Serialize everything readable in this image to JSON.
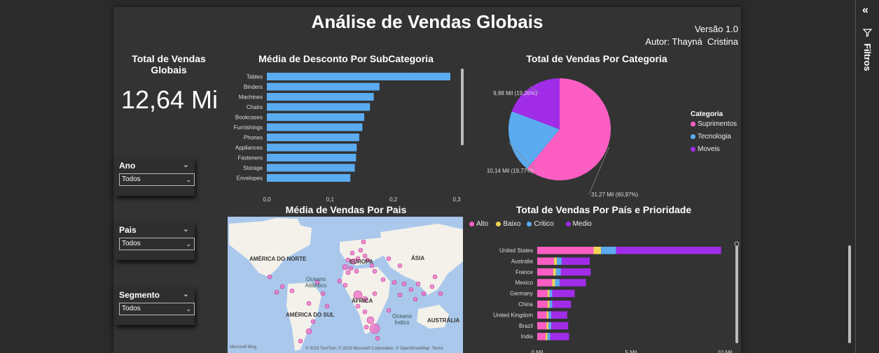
{
  "report": {
    "title": "Análise de Vendas Globais",
    "version": "Versão 1.0",
    "author": "Autor: Thayná  Cristina"
  },
  "kpi": {
    "label": "Total de Vendas Globais",
    "value": "12,64 Mi"
  },
  "slicers": [
    {
      "label": "Ano",
      "value": "Todos"
    },
    {
      "label": "Pais",
      "value": "Todos"
    },
    {
      "label": "Segmento",
      "value": "Todos"
    }
  ],
  "filters_pane": {
    "label": "Filtros"
  },
  "map": {
    "title": "Média de Vendas Por Pais",
    "labels": [
      "AMÉRICA DO NORTE",
      "EUROPA",
      "ÁSIA",
      "Oceano Atlântico",
      "ÁFRICA",
      "AMÉRICA DO SUL",
      "Oceano Índico",
      "AUSTRÁLIA"
    ],
    "brand": "Microsoft Bing",
    "attribution": "© 2023 TomTom, © 2023 Microsoft Corporation, © OpenStreetMap  Terms",
    "colors": {
      "water": "#a9c8ec",
      "land": "#f3f1ea",
      "bubble": "#f06ec4"
    }
  },
  "chart_data": [
    {
      "type": "bar",
      "orientation": "horizontal",
      "title": "Média de Desconto Por SubCategoria",
      "categories": [
        "Tables",
        "Binders",
        "Machines",
        "Chairs",
        "Bookcases",
        "Furnishings",
        "Phones",
        "Appliances",
        "Fasteners",
        "Storage",
        "Envelopes"
      ],
      "values": [
        0.29,
        0.178,
        0.169,
        0.163,
        0.154,
        0.151,
        0.146,
        0.142,
        0.141,
        0.139,
        0.132
      ],
      "xlim": [
        0,
        0.3
      ],
      "xticks": [
        "0,0",
        "0,1",
        "0,2",
        "0,3"
      ],
      "color": "#5aabf0"
    },
    {
      "type": "pie",
      "title": "Total de Vendas Por Categoria",
      "legend_title": "Categoria",
      "categories": [
        "Suprimentos",
        "Tecnologia",
        "Moveis"
      ],
      "values": [
        31.27,
        10.14,
        9.88
      ],
      "percent": [
        60.97,
        19.77,
        19.26
      ],
      "data_labels": [
        "31,27 Mil (60,97%)",
        "10,14 Mil (19,77%)",
        "9,88 Mil (19,26%)"
      ],
      "colors": [
        "#fc5ec3",
        "#5aabf0",
        "#a12ce8"
      ],
      "legend_position": "right"
    },
    {
      "type": "bar",
      "orientation": "horizontal",
      "stacked": true,
      "title": "Total de Vendas Por País e Prioridade",
      "categories": [
        "United States",
        "Australia",
        "France",
        "Mexico",
        "Germany",
        "China",
        "United Kingdom",
        "Brazil",
        "India"
      ],
      "series": [
        {
          "name": "Alto",
          "color": "#fc5ec3",
          "values": [
            3.0,
            0.9,
            0.85,
            0.8,
            0.55,
            0.55,
            0.5,
            0.5,
            0.45
          ]
        },
        {
          "name": "Baixo",
          "color": "#f3d45a",
          "values": [
            0.4,
            0.15,
            0.15,
            0.15,
            0.1,
            0.1,
            0.1,
            0.1,
            0.1
          ]
        },
        {
          "name": "Critico",
          "color": "#5aabf0",
          "values": [
            0.8,
            0.25,
            0.25,
            0.25,
            0.15,
            0.15,
            0.15,
            0.15,
            0.15
          ]
        },
        {
          "name": "Medio",
          "color": "#a12ce8",
          "values": [
            5.6,
            1.5,
            1.6,
            1.4,
            1.2,
            1.0,
            0.85,
            0.9,
            1.0
          ]
        }
      ],
      "xlim": [
        0,
        10
      ],
      "xticks": [
        "0 Mil",
        "5 Mil",
        "10 Mil"
      ],
      "legend_position": "top-left"
    }
  ]
}
